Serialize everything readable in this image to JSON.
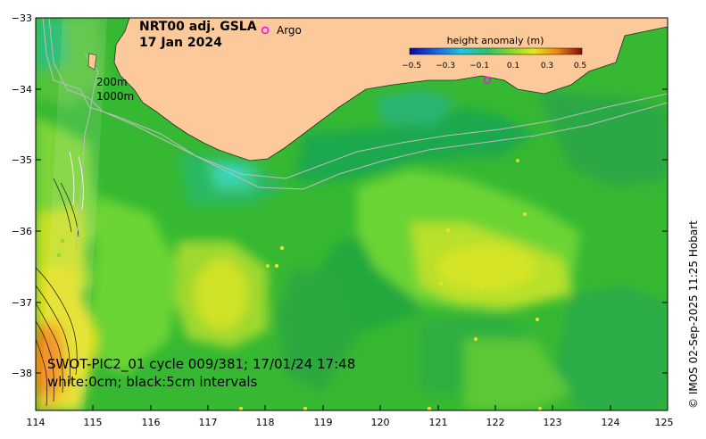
{
  "map": {
    "title_line1": "NRT00 adj. GSLA",
    "title_line2": "17 Jan 2024",
    "legend_argo": "Argo",
    "depth_label_200": "200m",
    "depth_label_1000": "1000m",
    "colorbar": {
      "title": "height anomaly (m)",
      "labels": [
        "−0.5",
        "−0.3",
        "−0.1",
        "0.1",
        "0.3",
        "0.5"
      ]
    },
    "swot_line1": "SWOT-PIC2_01 cycle 009/381; 17/01/24 17:48",
    "swot_line2": "white:0cm; black:5cm intervals",
    "credit": "© IMOS 02-Sep-2025 11:25 Hobart",
    "lat_labels": [
      "−33",
      "−34",
      "−35",
      "−36",
      "−37",
      "−38"
    ],
    "lon_labels": [
      "114",
      "115",
      "116",
      "117",
      "118",
      "119",
      "120",
      "121",
      "122",
      "123",
      "124",
      "125"
    ],
    "colors": {
      "land": "#fbc99a",
      "ocean_base": "#36b832",
      "argo_marker": "#ff00ff"
    }
  }
}
